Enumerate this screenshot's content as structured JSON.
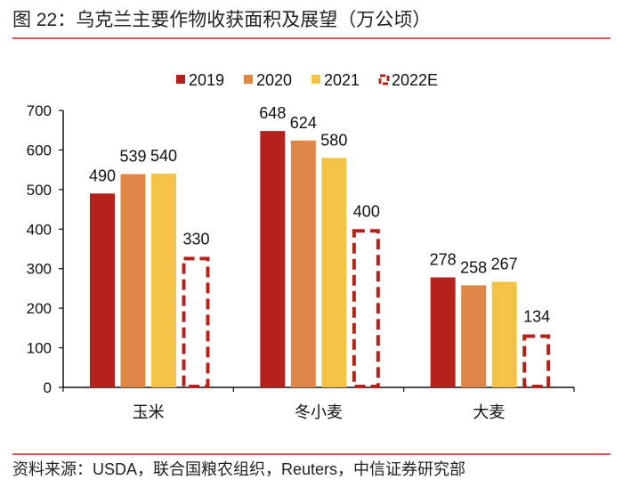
{
  "title": "图 22：乌克兰主要作物收获面积及展望（万公顷）",
  "source": "资料来源：USDA，联合国粮农组织，Reuters，中信证券研究部",
  "chart_data": {
    "type": "bar",
    "title": "",
    "xlabel": "",
    "ylabel": "",
    "categories": [
      "玉米",
      "冬小麦",
      "大麦"
    ],
    "ylim": [
      0,
      700
    ],
    "yticks": [
      0,
      100,
      200,
      300,
      400,
      500,
      600,
      700
    ],
    "grid": false,
    "legend_position": "top",
    "series": [
      {
        "name": "2019",
        "values": [
          490,
          648,
          278
        ],
        "color": "#b5221b",
        "style": "solid"
      },
      {
        "name": "2020",
        "values": [
          539,
          624,
          258
        ],
        "color": "#e08747",
        "style": "solid"
      },
      {
        "name": "2021",
        "values": [
          540,
          580,
          267
        ],
        "color": "#f4c245",
        "style": "solid"
      },
      {
        "name": "2022E",
        "values": [
          330,
          400,
          134
        ],
        "color": "#b5221b",
        "style": "dashed-outline"
      }
    ]
  }
}
